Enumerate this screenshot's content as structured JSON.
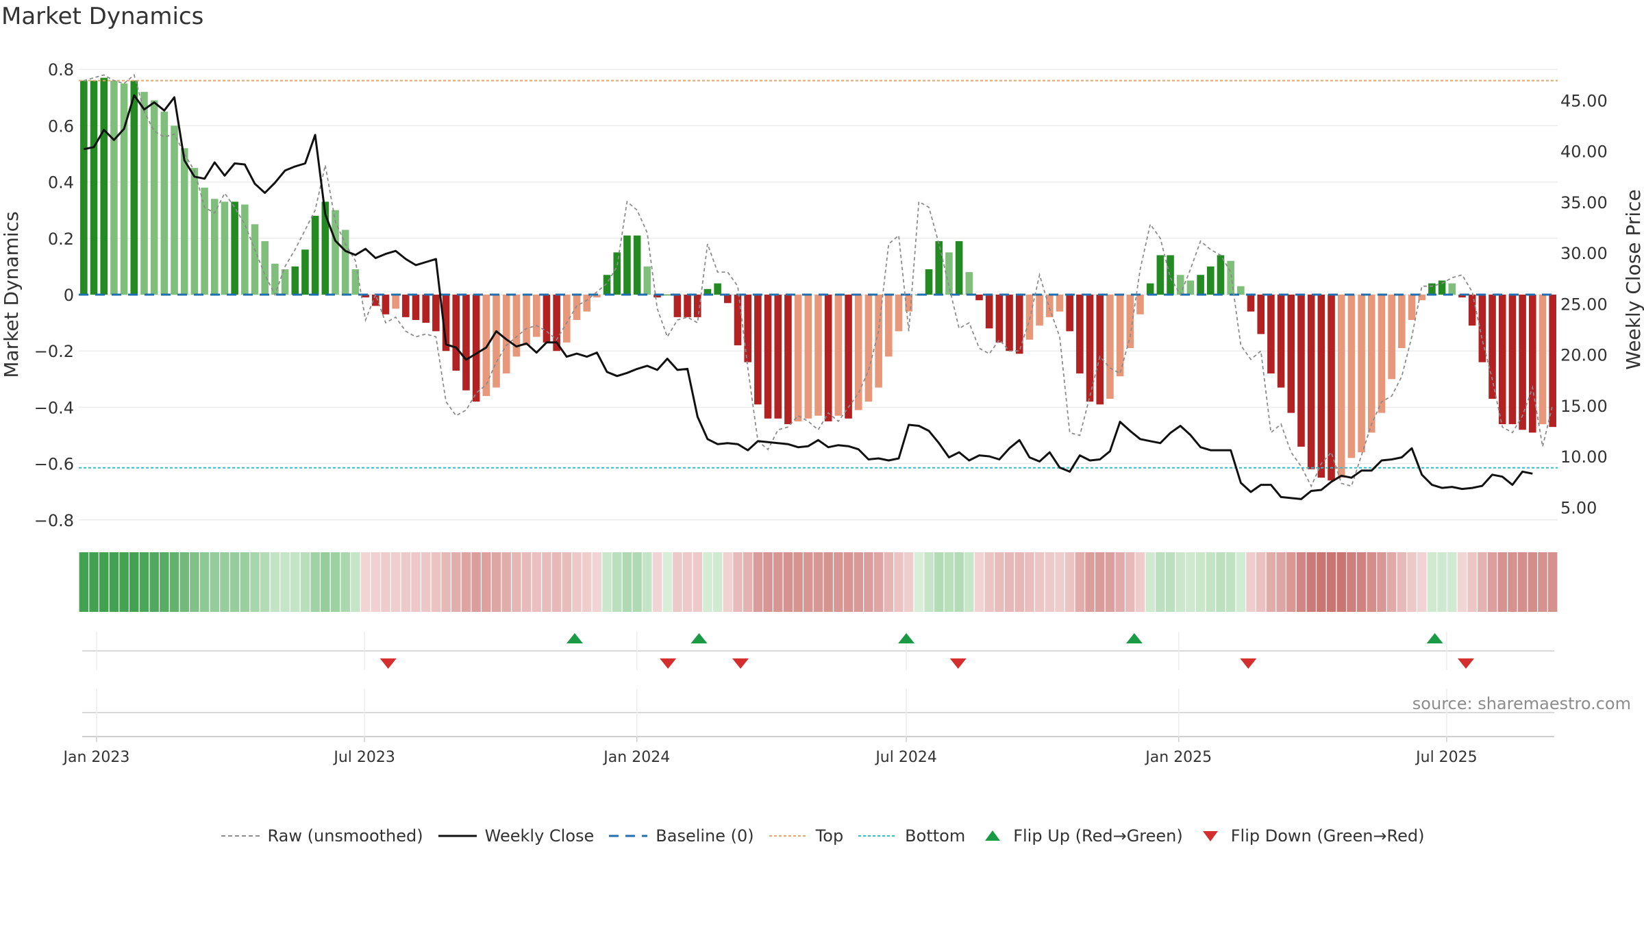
{
  "title": "Market Dynamics",
  "source": "source: sharemaestro.com",
  "colors": {
    "strong_green": "#238b22",
    "light_green": "#7fbf7b",
    "strong_red": "#b22222",
    "light_red": "#e8987a",
    "raw": "#8c8c8c",
    "close": "#111111",
    "baseline": "#1f6fb0",
    "top": "#e8a56a",
    "bottom": "#2bbfd1",
    "flip_up": "#1a9a45",
    "flip_down": "#d32f2f"
  },
  "legend": [
    {
      "label": "Raw (unsmoothed)",
      "icon": "dashed-gray-line"
    },
    {
      "label": "Weekly Close",
      "icon": "solid-black-line"
    },
    {
      "label": "Baseline (0)",
      "icon": "dashed-blue-line"
    },
    {
      "label": "Top",
      "icon": "dotted-orange-line"
    },
    {
      "label": "Bottom",
      "icon": "dotted-cyan-line"
    },
    {
      "label": "Flip Up (Red→Green)",
      "icon": "green-up-triangle"
    },
    {
      "label": "Flip Down (Green→Red)",
      "icon": "red-down-triangle"
    }
  ],
  "chart_data": {
    "type": "bar",
    "title": "Market Dynamics",
    "ylabel": "Market Dynamics",
    "y2label": "Weekly Close Price",
    "ylim": [
      -0.82,
      0.82
    ],
    "y2lim": [
      3.2,
      48.6
    ],
    "yticks": [
      "0.8",
      "0.6",
      "0.4",
      "0.2",
      "0",
      "−0.2",
      "−0.4",
      "−0.6",
      "−0.8"
    ],
    "yticks_values": [
      0.8,
      0.6,
      0.4,
      0.2,
      0,
      -0.2,
      -0.4,
      -0.6,
      -0.8
    ],
    "y2ticks": [
      "45.00",
      "40.00",
      "35.00",
      "30.00",
      "25.00",
      "20.00",
      "15.00",
      "10.00",
      "5.00"
    ],
    "y2ticks_values": [
      45,
      40,
      35,
      30,
      25,
      20,
      15,
      10,
      5
    ],
    "xticks": [
      "Jan 2023",
      "Jul 2023",
      "Jan 2024",
      "Jul 2024",
      "Jan 2025",
      "Jul 2025"
    ],
    "xticks_dates": [
      "2023-01-01",
      "2023-07-01",
      "2024-01-01",
      "2024-07-01",
      "2025-01-01",
      "2025-07-01"
    ],
    "start_date": "2022-12-20",
    "end_date": "2025-09-14",
    "top_line": 0.76,
    "bottom_line": -0.615,
    "grid": true,
    "legend_position": "bottom",
    "dynamics": [
      0.76,
      0.76,
      0.77,
      0.76,
      0.75,
      0.76,
      0.72,
      0.69,
      0.65,
      0.6,
      0.52,
      0.45,
      0.38,
      0.34,
      0.33,
      0.33,
      0.32,
      0.25,
      0.19,
      0.11,
      0.09,
      0.1,
      0.16,
      0.28,
      0.33,
      0.3,
      0.23,
      0.09,
      -0.01,
      -0.04,
      -0.07,
      -0.05,
      -0.08,
      -0.09,
      -0.1,
      -0.13,
      -0.2,
      -0.27,
      -0.34,
      -0.38,
      -0.36,
      -0.33,
      -0.28,
      -0.22,
      -0.18,
      -0.15,
      -0.17,
      -0.2,
      -0.17,
      -0.09,
      -0.06,
      -0.01,
      0.07,
      0.15,
      0.21,
      0.21,
      0.1,
      -0.01,
      0.0,
      -0.08,
      -0.08,
      -0.08,
      0.02,
      0.04,
      -0.03,
      -0.18,
      -0.24,
      -0.39,
      -0.44,
      -0.44,
      -0.46,
      -0.45,
      -0.44,
      -0.43,
      -0.45,
      -0.43,
      -0.44,
      -0.41,
      -0.38,
      -0.33,
      -0.22,
      -0.13,
      -0.06,
      0.0,
      0.09,
      0.19,
      0.15,
      0.19,
      0.08,
      -0.02,
      -0.12,
      -0.17,
      -0.2,
      -0.21,
      -0.16,
      -0.11,
      -0.08,
      -0.06,
      -0.13,
      -0.28,
      -0.38,
      -0.39,
      -0.37,
      -0.29,
      -0.19,
      -0.07,
      0.04,
      0.14,
      0.14,
      0.07,
      0.05,
      0.07,
      0.1,
      0.14,
      0.12,
      0.03,
      -0.06,
      -0.14,
      -0.28,
      -0.33,
      -0.42,
      -0.54,
      -0.62,
      -0.65,
      -0.66,
      -0.65,
      -0.58,
      -0.56,
      -0.49,
      -0.42,
      -0.3,
      -0.19,
      -0.09,
      -0.02,
      0.04,
      0.05,
      0.04,
      -0.01,
      -0.11,
      -0.24,
      -0.37,
      -0.46,
      -0.46,
      -0.48,
      -0.49,
      -0.46,
      -0.47
    ],
    "raw": [
      0.76,
      0.77,
      0.78,
      0.76,
      0.75,
      0.78,
      0.65,
      0.58,
      0.56,
      0.57,
      0.5,
      0.44,
      0.31,
      0.29,
      0.36,
      0.31,
      0.25,
      0.16,
      0.07,
      0.0,
      0.1,
      0.16,
      0.23,
      0.3,
      0.46,
      0.26,
      0.18,
      0.12,
      -0.09,
      0.0,
      -0.1,
      -0.08,
      -0.13,
      -0.15,
      -0.14,
      -0.15,
      -0.38,
      -0.43,
      -0.41,
      -0.35,
      -0.32,
      -0.24,
      -0.18,
      -0.15,
      -0.12,
      -0.11,
      -0.13,
      -0.16,
      -0.1,
      -0.04,
      -0.02,
      0.01,
      0.04,
      0.1,
      0.33,
      0.3,
      0.22,
      -0.05,
      -0.15,
      -0.09,
      -0.08,
      -0.1,
      0.18,
      0.08,
      0.08,
      0.03,
      -0.26,
      -0.52,
      -0.55,
      -0.48,
      -0.47,
      -0.43,
      -0.45,
      -0.48,
      -0.42,
      -0.45,
      -0.4,
      -0.35,
      -0.27,
      -0.13,
      0.18,
      0.21,
      -0.13,
      0.33,
      0.31,
      0.18,
      0.03,
      -0.12,
      -0.1,
      -0.19,
      -0.21,
      -0.16,
      -0.2,
      -0.2,
      -0.09,
      0.07,
      -0.05,
      -0.15,
      -0.49,
      -0.5,
      -0.36,
      -0.22,
      -0.26,
      -0.28,
      -0.15,
      0.09,
      0.25,
      0.2,
      0.06,
      0.0,
      0.09,
      0.19,
      0.16,
      0.14,
      0.08,
      -0.18,
      -0.23,
      -0.2,
      -0.49,
      -0.46,
      -0.56,
      -0.61,
      -0.68,
      -0.6,
      -0.56,
      -0.67,
      -0.68,
      -0.57,
      -0.46,
      -0.38,
      -0.36,
      -0.29,
      -0.15,
      0.03,
      0.03,
      0.04,
      0.06,
      0.07,
      0.01,
      -0.16,
      -0.3,
      -0.47,
      -0.49,
      -0.43,
      -0.33,
      -0.54,
      -0.39
    ],
    "close": [
      40.2,
      40.4,
      42.1,
      41.1,
      42.2,
      45.5,
      44.1,
      44.8,
      44.0,
      45.3,
      39.1,
      37.5,
      37.3,
      38.9,
      37.6,
      38.8,
      38.7,
      36.8,
      35.9,
      36.9,
      38.1,
      38.5,
      38.8,
      41.6,
      33.8,
      31.2,
      30.2,
      29.8,
      30.4,
      29.5,
      29.9,
      30.2,
      29.4,
      28.8,
      29.1,
      29.4,
      21.0,
      20.7,
      19.5,
      20.1,
      20.7,
      22.3,
      21.5,
      20.8,
      21.1,
      20.2,
      21.2,
      21.2,
      19.8,
      20.1,
      19.8,
      20.2,
      18.3,
      17.9,
      18.2,
      18.6,
      18.9,
      18.5,
      19.6,
      18.5,
      18.6,
      13.9,
      11.7,
      11.2,
      11.3,
      11.2,
      10.6,
      11.5,
      11.4,
      11.3,
      11.2,
      10.9,
      11.0,
      11.6,
      10.9,
      11.1,
      11.0,
      10.7,
      9.7,
      9.8,
      9.6,
      9.8,
      13.1,
      13.0,
      12.5,
      11.3,
      9.9,
      10.4,
      9.6,
      10.1,
      10.0,
      9.7,
      10.8,
      11.6,
      9.9,
      9.5,
      10.4,
      8.9,
      8.5,
      10.1,
      9.6,
      9.7,
      10.5,
      13.4,
      12.5,
      11.7,
      11.5,
      11.3,
      12.3,
      13.0,
      12.1,
      10.9,
      10.6,
      10.6,
      10.6,
      7.4,
      6.5,
      7.2,
      7.2,
      6.0,
      5.9,
      5.8,
      6.6,
      6.7,
      7.5,
      8.1,
      7.9,
      8.6,
      8.6,
      9.6,
      9.7,
      9.9,
      10.8,
      8.2,
      7.2,
      6.9,
      7.0,
      6.8,
      6.9,
      7.1,
      8.2,
      8.0,
      7.2,
      8.5,
      8.3
    ],
    "flip_up_dates": [
      "2023-11-20",
      "2024-02-12",
      "2024-07-01",
      "2024-12-02",
      "2025-06-23"
    ],
    "flip_down_dates": [
      "2023-07-17",
      "2024-01-22",
      "2024-03-11",
      "2024-08-05",
      "2025-02-17",
      "2025-07-14"
    ]
  }
}
